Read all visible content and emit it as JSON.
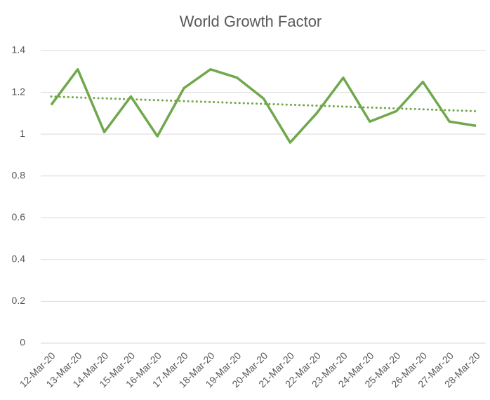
{
  "chart_data": {
    "type": "line",
    "title": "World Growth Factor",
    "categories": [
      "12-Mar-20",
      "13-Mar-20",
      "14-Mar-20",
      "15-Mar-20",
      "16-Mar-20",
      "17-Mar-20",
      "18-Mar-20",
      "19-Mar-20",
      "20-Mar-20",
      "21-Mar-20",
      "22-Mar-20",
      "23-Mar-20",
      "24-Mar-20",
      "25-Mar-20",
      "26-Mar-20",
      "27-Mar-20",
      "28-Mar-20"
    ],
    "values": [
      1.14,
      1.31,
      1.01,
      1.18,
      0.99,
      1.22,
      1.31,
      1.27,
      1.17,
      0.96,
      1.1,
      1.27,
      1.06,
      1.11,
      1.25,
      1.06,
      1.04
    ],
    "color": "#70a84b",
    "trendline": [
      1.18,
      1.11
    ],
    "ylim": [
      0,
      1.4
    ],
    "yticks": [
      0,
      0.2,
      0.4,
      0.6,
      0.8,
      1,
      1.2,
      1.4
    ],
    "grid": true
  }
}
